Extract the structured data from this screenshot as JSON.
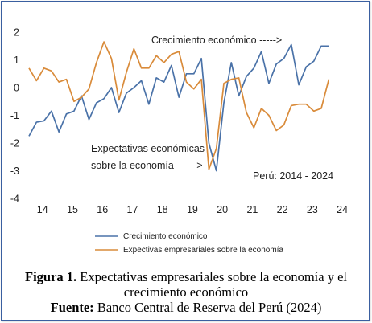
{
  "chart_data": {
    "type": "line",
    "x_ticks": [
      "14",
      "15",
      "16",
      "17",
      "18",
      "19",
      "20",
      "21",
      "22",
      "23",
      "24"
    ],
    "y_ticks": [
      "2",
      "1",
      "0",
      "-1",
      "-2",
      "-3",
      "-4"
    ],
    "ylim": [
      -4,
      2
    ],
    "xlim": [
      13.55,
      24.4
    ],
    "grid": false,
    "legend_position": "bottom",
    "annotations": [
      {
        "id": "growth",
        "text": "Crecimiento económico ----->"
      },
      {
        "id": "expect1",
        "text": "Expectativas económicas"
      },
      {
        "id": "expect2",
        "text": "sobre la economía ------>"
      },
      {
        "id": "period",
        "text": "Perú: 2014 - 2024"
      }
    ],
    "series": [
      {
        "name": "Crecimiento económico",
        "color": "#4a72a8",
        "x": [
          13.55,
          13.8,
          14.05,
          14.3,
          14.55,
          14.8,
          15.05,
          15.3,
          15.55,
          15.8,
          16.05,
          16.3,
          16.55,
          16.8,
          17.05,
          17.3,
          17.55,
          17.8,
          18.05,
          18.3,
          18.55,
          18.8,
          19.05,
          19.3,
          19.55,
          19.8,
          20.05,
          20.3,
          20.55,
          20.8,
          21.05,
          21.3,
          21.55,
          21.8,
          22.05,
          22.3,
          22.55,
          22.8,
          23.05,
          23.3,
          23.55
        ],
        "y": [
          -1.75,
          -1.25,
          -1.2,
          -0.85,
          -1.6,
          -0.95,
          -0.85,
          -0.3,
          -1.15,
          -0.55,
          -0.4,
          0.0,
          -0.9,
          -0.2,
          0.0,
          0.25,
          -0.6,
          0.35,
          0.2,
          0.8,
          -0.35,
          0.5,
          0.5,
          1.05,
          -2.0,
          -3.0,
          -0.55,
          0.9,
          -0.3,
          0.4,
          0.7,
          1.3,
          0.15,
          0.85,
          1.05,
          1.55,
          0.1,
          0.75,
          0.95,
          1.5,
          1.5
        ]
      },
      {
        "name": "Expectivas empresariales sobre la economía",
        "color": "#d98b3a",
        "x": [
          13.55,
          13.8,
          14.05,
          14.3,
          14.55,
          14.8,
          15.05,
          15.3,
          15.55,
          15.8,
          16.05,
          16.3,
          16.55,
          16.8,
          17.05,
          17.3,
          17.55,
          17.8,
          18.05,
          18.3,
          18.55,
          18.8,
          19.05,
          19.3,
          19.55,
          19.8,
          20.05,
          20.3,
          20.55,
          20.8,
          21.05,
          21.3,
          21.55,
          21.8,
          22.05,
          22.3,
          22.55,
          22.8,
          23.05,
          23.3,
          23.55
        ],
        "y": [
          0.7,
          0.25,
          0.7,
          0.6,
          0.2,
          0.3,
          -0.5,
          -0.35,
          -0.05,
          0.9,
          1.65,
          1.05,
          -0.45,
          0.55,
          1.4,
          0.7,
          0.7,
          1.15,
          0.9,
          1.2,
          1.3,
          0.2,
          -0.05,
          0.3,
          -2.95,
          -2.2,
          0.15,
          0.3,
          0.35,
          -0.9,
          -1.45,
          -0.75,
          -1.0,
          -1.55,
          -1.35,
          -0.65,
          -0.6,
          -0.6,
          -0.85,
          -0.75,
          0.3
        ]
      }
    ]
  },
  "caption": {
    "label": "Figura 1.",
    "text": " Expectativas empresariales sobre la economía y el crecimiento económico",
    "source_label": "Fuente:",
    "source_text": " Banco Central de Reserva del Perú (2024)"
  }
}
